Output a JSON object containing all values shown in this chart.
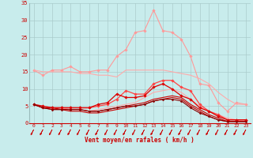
{
  "x": [
    0,
    1,
    2,
    3,
    4,
    5,
    6,
    7,
    8,
    9,
    10,
    11,
    12,
    13,
    14,
    15,
    16,
    17,
    18,
    19,
    20,
    21,
    22,
    23
  ],
  "series": [
    {
      "name": "rafales_max",
      "color": "#ff9999",
      "linewidth": 0.8,
      "marker": "D",
      "markersize": 1.8,
      "values": [
        15.5,
        14.0,
        15.5,
        15.5,
        16.5,
        15.0,
        15.0,
        15.5,
        15.5,
        19.5,
        21.5,
        26.5,
        27.0,
        33.0,
        27.0,
        26.5,
        24.5,
        19.5,
        11.5,
        11.0,
        6.0,
        3.5,
        6.0,
        5.5
      ]
    },
    {
      "name": "vent_moyen_max",
      "color": "#ffaaaa",
      "linewidth": 0.8,
      "marker": null,
      "markersize": 0,
      "values": [
        15.5,
        15.0,
        15.0,
        15.0,
        15.0,
        14.5,
        14.5,
        14.0,
        14.0,
        13.5,
        15.5,
        15.5,
        15.5,
        15.5,
        15.5,
        15.0,
        14.5,
        14.0,
        13.0,
        11.5,
        9.0,
        7.0,
        5.5,
        5.5
      ]
    },
    {
      "name": "vent_moyen_min",
      "color": "#ffaaaa",
      "linewidth": 0.8,
      "marker": null,
      "markersize": 0,
      "values": [
        5.5,
        5.0,
        4.5,
        4.5,
        4.0,
        4.0,
        3.5,
        4.0,
        4.5,
        5.0,
        5.5,
        6.0,
        7.5,
        9.0,
        9.5,
        10.0,
        9.0,
        7.0,
        5.0,
        3.5,
        2.5,
        1.5,
        1.0,
        0.5
      ]
    },
    {
      "name": "vent_moyen_med",
      "color": "#ff4444",
      "linewidth": 0.9,
      "marker": "D",
      "markersize": 1.8,
      "values": [
        5.5,
        4.5,
        4.5,
        4.5,
        4.5,
        4.5,
        4.5,
        5.0,
        5.5,
        7.0,
        9.5,
        8.5,
        8.5,
        11.5,
        12.5,
        12.5,
        10.5,
        9.5,
        5.5,
        3.5,
        2.5,
        1.0,
        1.0,
        1.0
      ]
    },
    {
      "name": "rafales_med",
      "color": "#dd0000",
      "linewidth": 0.9,
      "marker": "D",
      "markersize": 1.8,
      "values": [
        5.5,
        5.0,
        4.5,
        4.5,
        4.5,
        4.5,
        4.5,
        5.5,
        6.0,
        8.5,
        7.5,
        7.5,
        8.0,
        10.5,
        11.5,
        10.0,
        8.0,
        7.0,
        4.5,
        3.5,
        2.0,
        1.0,
        1.0,
        1.0
      ]
    },
    {
      "name": "vent_min1",
      "color": "#cc0000",
      "linewidth": 0.8,
      "marker": null,
      "markersize": 0,
      "values": [
        5.5,
        4.5,
        4.5,
        4.0,
        4.0,
        4.0,
        3.5,
        3.5,
        4.0,
        4.5,
        5.0,
        5.5,
        6.0,
        7.0,
        7.5,
        8.0,
        7.5,
        5.5,
        4.0,
        2.5,
        1.5,
        0.5,
        0.5,
        0.5
      ]
    },
    {
      "name": "vent_min2",
      "color": "#cc0000",
      "linewidth": 0.8,
      "marker": null,
      "markersize": 0,
      "values": [
        5.5,
        4.5,
        4.0,
        4.0,
        3.5,
        3.5,
        3.0,
        3.0,
        3.5,
        4.0,
        4.5,
        5.0,
        5.5,
        6.5,
        7.0,
        7.5,
        7.0,
        5.0,
        3.5,
        2.0,
        1.0,
        0.5,
        0.5,
        0.5
      ]
    },
    {
      "name": "vent_min3",
      "color": "#880000",
      "linewidth": 0.8,
      "marker": "D",
      "markersize": 1.5,
      "values": [
        5.5,
        4.5,
        4.0,
        4.0,
        4.0,
        4.0,
        3.5,
        3.5,
        4.0,
        4.5,
        5.0,
        5.0,
        5.5,
        6.5,
        7.0,
        7.0,
        6.5,
        4.5,
        3.0,
        2.0,
        1.0,
        0.5,
        0.5,
        0.5
      ]
    }
  ],
  "xlabel": "Vent moyen/en rafales ( km/h )",
  "xlim_lo": -0.5,
  "xlim_hi": 23.5,
  "ylim": [
    0,
    35
  ],
  "yticks": [
    0,
    5,
    10,
    15,
    20,
    25,
    30,
    35
  ],
  "xticks": [
    0,
    1,
    2,
    3,
    4,
    5,
    6,
    7,
    8,
    9,
    10,
    11,
    12,
    13,
    14,
    15,
    16,
    17,
    18,
    19,
    20,
    21,
    22,
    23
  ],
  "bg_color": "#c8ecec",
  "grid_color": "#aacccc",
  "arrow_color": "#cc0000",
  "tick_color": "#cc0000",
  "label_color": "#cc0000"
}
